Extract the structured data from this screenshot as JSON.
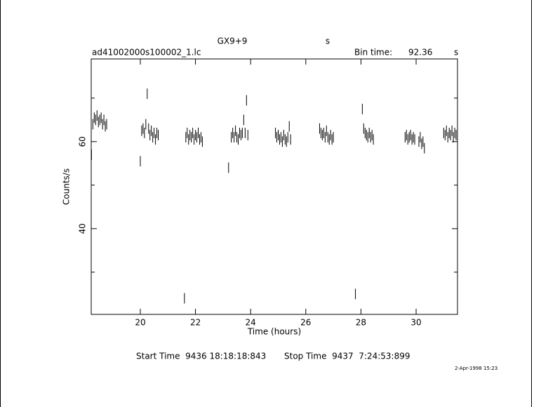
{
  "chart_data": {
    "type": "scatter",
    "title": "GX9+9",
    "title_unit": "s",
    "file_name": "ad41002000s100002_1.lc",
    "bin_time_label": "Bin time:",
    "bin_time": "92.36",
    "bin_time_unit": "s",
    "ylabel": "Counts/s",
    "xlabel": "Time (hours)",
    "start_time": "Start Time  9436 18:18:18:843",
    "stop_time": "Stop Time  9437  7:24:53:899",
    "date": "2-Apr-1998 15:23",
    "xlim": [
      18.22,
      31.5
    ],
    "ylim": [
      20.3,
      79
    ],
    "xticks": [
      20,
      22,
      24,
      26,
      28,
      30
    ],
    "yticks": [
      40,
      60
    ],
    "yminor": [
      30,
      50,
      70
    ],
    "color": "#000000",
    "yerr": 1.2,
    "x": [
      18.23,
      18.28,
      18.33,
      18.38,
      18.43,
      18.48,
      18.53,
      18.58,
      18.63,
      18.68,
      18.73,
      18.78,
      20.0,
      20.05,
      20.1,
      20.15,
      20.2,
      20.25,
      20.3,
      20.35,
      20.4,
      20.45,
      20.5,
      20.55,
      20.6,
      20.65,
      21.6,
      21.65,
      21.7,
      21.75,
      21.8,
      21.85,
      21.9,
      21.95,
      22.0,
      22.05,
      22.1,
      22.15,
      22.2,
      22.25,
      23.2,
      23.3,
      23.35,
      23.4,
      23.45,
      23.5,
      23.55,
      23.6,
      23.65,
      23.7,
      23.75,
      23.8,
      23.85,
      23.9,
      24.9,
      24.95,
      25.0,
      25.05,
      25.1,
      25.15,
      25.2,
      25.25,
      25.3,
      25.35,
      25.4,
      25.45,
      26.5,
      26.55,
      26.6,
      26.65,
      26.7,
      26.75,
      26.8,
      26.85,
      26.9,
      26.95,
      27.0,
      27.8,
      28.05,
      28.1,
      28.15,
      28.2,
      28.25,
      28.3,
      28.35,
      28.4,
      28.45,
      29.6,
      29.65,
      29.7,
      29.75,
      29.8,
      29.85,
      29.9,
      29.95,
      30.1,
      30.15,
      30.2,
      30.25,
      30.3,
      31.0,
      31.05,
      31.1,
      31.15,
      31.2,
      31.25,
      31.3,
      31.35,
      31.4,
      31.45
    ],
    "values": [
      57,
      64,
      65.5,
      65,
      66,
      64.5,
      65,
      65.5,
      64,
      65,
      63.5,
      64,
      55.5,
      62.5,
      63,
      62,
      64,
      71,
      63,
      61.5,
      62.5,
      61,
      62,
      60.5,
      62,
      61.5,
      24,
      61,
      62,
      60.5,
      61.5,
      61,
      62,
      60.5,
      61.5,
      61,
      62,
      60.5,
      61,
      60,
      54,
      61,
      62,
      61,
      62.5,
      61,
      60.5,
      62,
      61.5,
      62,
      65,
      62,
      69.5,
      61.5,
      62,
      61,
      61.5,
      60.5,
      61,
      60,
      61.5,
      60.5,
      60,
      61,
      63.5,
      60.5,
      63,
      62,
      61.5,
      62,
      61,
      62.5,
      61,
      60.5,
      61.5,
      60.5,
      61,
      25,
      67.5,
      63,
      62,
      61.5,
      61,
      62,
      61,
      61.5,
      60.5,
      61,
      61.5,
      60.5,
      61,
      61.5,
      60.5,
      61,
      60.5,
      60,
      61,
      59.5,
      60,
      58.5,
      62,
      61.5,
      62.5,
      61,
      62,
      61.5,
      62.5,
      61,
      62,
      61.5
    ]
  }
}
